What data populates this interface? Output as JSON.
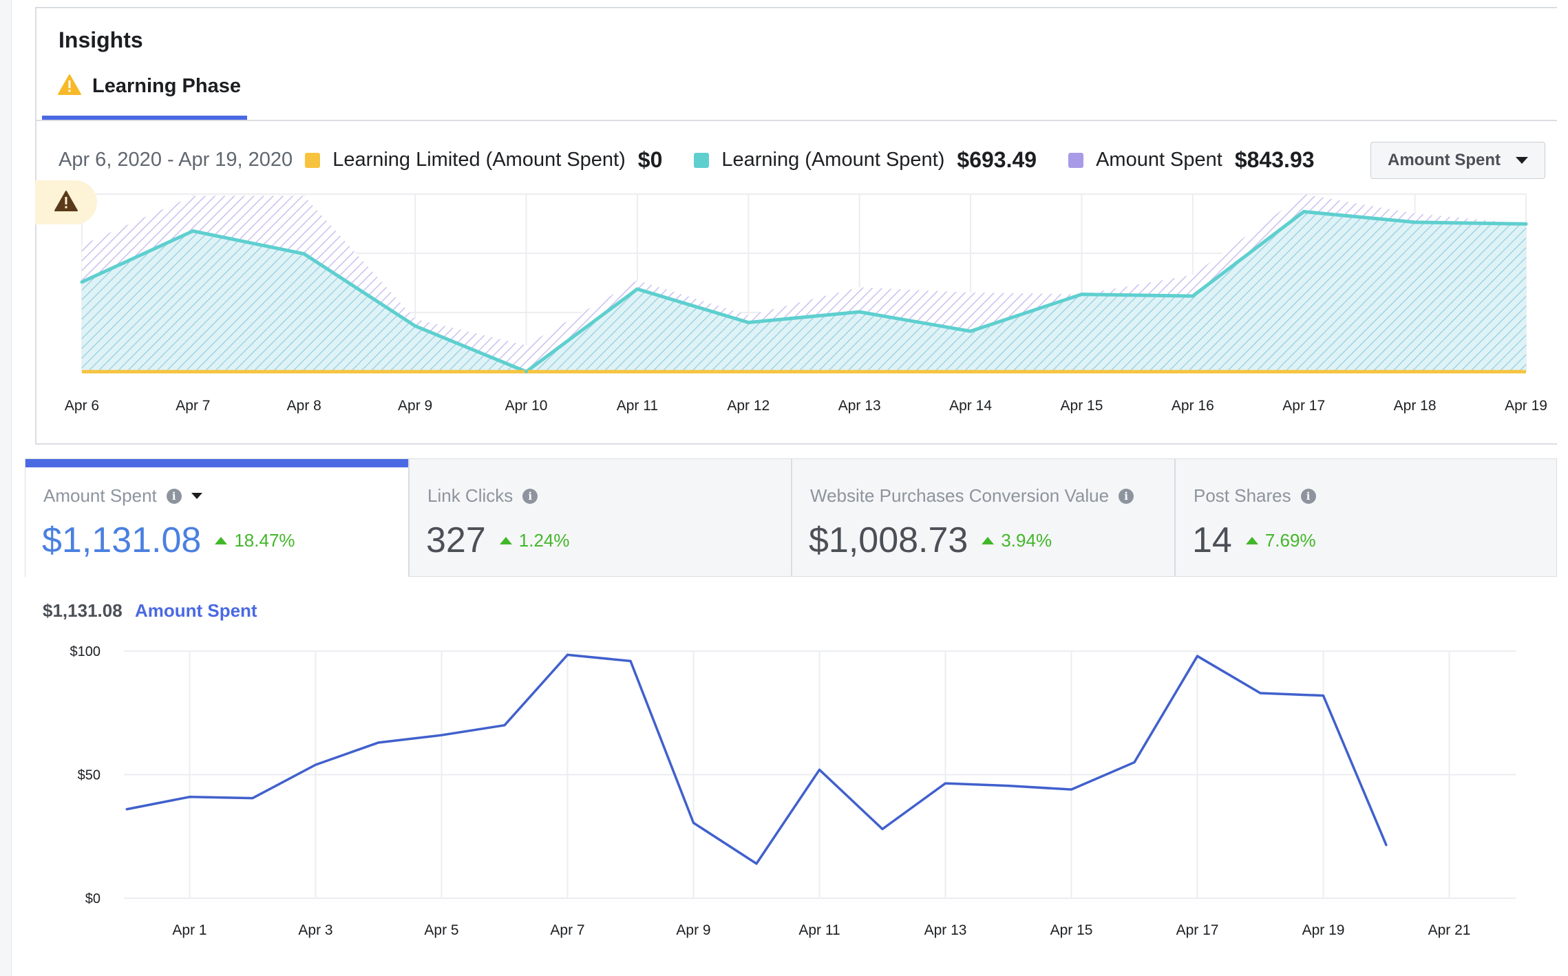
{
  "insights": {
    "title": "Insights",
    "tab_label": "Learning Phase",
    "date_range": "Apr 6, 2020 - Apr 19, 2020",
    "legend": [
      {
        "label": "Learning Limited (Amount Spent)",
        "value": "$0",
        "color": "#f7c33e"
      },
      {
        "label": "Learning (Amount Spent)",
        "value": "$693.49",
        "color": "#5ecfcf"
      },
      {
        "label": "Amount Spent",
        "value": "$843.93",
        "color": "#a99ae8"
      }
    ],
    "metric_select": "Amount Spent"
  },
  "kpis": [
    {
      "label": "Amount Spent",
      "value": "$1,131.08",
      "change": "18.47%",
      "active": true
    },
    {
      "label": "Link Clicks",
      "value": "327",
      "change": "1.24%",
      "active": false
    },
    {
      "label": "Website Purchases Conversion Value",
      "value": "$1,008.73",
      "change": "3.94%",
      "active": false
    },
    {
      "label": "Post Shares",
      "value": "14",
      "change": "7.69%",
      "active": false
    }
  ],
  "spend_header": {
    "value": "$1,131.08",
    "name": "Amount Spent"
  },
  "colors": {
    "accent": "#4a69e2",
    "teal": "#5ecfcf",
    "purple": "#a99ae8",
    "yellow": "#f7c33e",
    "positive": "#42b72a",
    "line": "#4060cc"
  },
  "chart_data": [
    {
      "type": "area",
      "categories": [
        "Apr 6",
        "Apr 7",
        "Apr 8",
        "Apr 9",
        "Apr 10",
        "Apr 11",
        "Apr 12",
        "Apr 13",
        "Apr 14",
        "Apr 15",
        "Apr 16",
        "Apr 17",
        "Apr 18",
        "Apr 19"
      ],
      "series": [
        {
          "name": "Learning Limited (Amount Spent)",
          "values": [
            0,
            0,
            0,
            0,
            0,
            0,
            0,
            0,
            0,
            0,
            0,
            0,
            0,
            0
          ]
        },
        {
          "name": "Learning (Amount Spent)",
          "values": [
            51,
            80,
            67,
            26,
            0,
            47,
            28,
            34,
            23,
            44,
            43,
            91,
            85,
            84
          ]
        },
        {
          "name": "Amount Spent",
          "values": [
            72,
            100,
            100,
            30,
            15,
            52,
            32,
            48,
            45,
            44,
            55,
            101,
            90,
            84
          ]
        }
      ],
      "grid": true
    },
    {
      "type": "line",
      "x": [
        "Mar 31",
        "Apr 1",
        "Apr 2",
        "Apr 3",
        "Apr 4",
        "Apr 5",
        "Apr 6",
        "Apr 7",
        "Apr 8",
        "Apr 9",
        "Apr 10",
        "Apr 11",
        "Apr 12",
        "Apr 13",
        "Apr 14",
        "Apr 15",
        "Apr 16",
        "Apr 17",
        "Apr 18",
        "Apr 19",
        "Apr 20"
      ],
      "xticks": [
        "Apr 1",
        "Apr 3",
        "Apr 5",
        "Apr 7",
        "Apr 9",
        "Apr 11",
        "Apr 13",
        "Apr 15",
        "Apr 17",
        "Apr 19",
        "Apr 21"
      ],
      "yticks": [
        "$0",
        "$50",
        "$100"
      ],
      "ylim": [
        0,
        100
      ],
      "series": [
        {
          "name": "Amount Spent",
          "values": [
            36,
            41,
            40.5,
            54,
            63,
            66,
            70,
            98.5,
            96,
            30.5,
            14,
            52,
            28,
            46.5,
            45.5,
            44,
            55,
            98,
            83,
            82,
            21.5
          ]
        }
      ],
      "grid": true
    }
  ]
}
